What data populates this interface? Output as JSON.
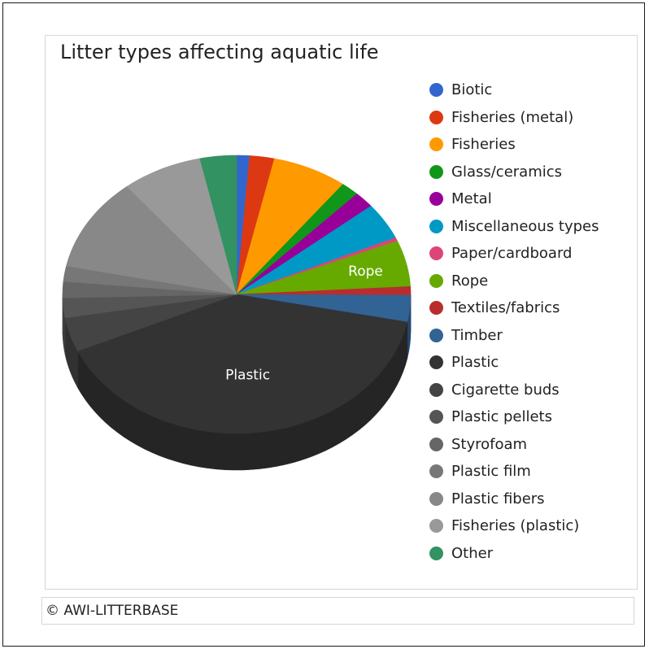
{
  "chart_data": {
    "type": "pie",
    "title": "Litter types affecting aquatic life",
    "series": [
      {
        "name": "Biotic",
        "value": 1.2,
        "color": "#3366cc"
      },
      {
        "name": "Fisheries (metal)",
        "value": 2.3,
        "color": "#dc3912"
      },
      {
        "name": "Fisheries",
        "value": 7.0,
        "color": "#ff9900"
      },
      {
        "name": "Glass/ceramics",
        "value": 1.7,
        "color": "#109618"
      },
      {
        "name": "Metal",
        "value": 1.9,
        "color": "#990099"
      },
      {
        "name": "Miscellaneous types",
        "value": 4.3,
        "color": "#0099c6"
      },
      {
        "name": "Paper/cardboard",
        "value": 0.4,
        "color": "#dd4477"
      },
      {
        "name": "Rope",
        "value": 5.4,
        "color": "#66aa00"
      },
      {
        "name": "Textiles/fabrics",
        "value": 1.0,
        "color": "#b82e2e"
      },
      {
        "name": "Timber",
        "value": 3.1,
        "color": "#316395"
      },
      {
        "name": "Plastic",
        "value": 40.3,
        "color": "#333333"
      },
      {
        "name": "Cigarette buds",
        "value": 4.0,
        "color": "#444444"
      },
      {
        "name": "Plastic pellets",
        "value": 2.3,
        "color": "#555555"
      },
      {
        "name": "Styrofoam",
        "value": 1.9,
        "color": "#666666"
      },
      {
        "name": "Plastic film",
        "value": 1.8,
        "color": "#777777"
      },
      {
        "name": "Plastic fibers",
        "value": 10.9,
        "color": "#888888"
      },
      {
        "name": "Fisheries (plastic)",
        "value": 7.5,
        "color": "#999999"
      },
      {
        "name": "Other",
        "value": 3.4,
        "color": "#329262"
      }
    ],
    "slice_labels": [
      "Rope",
      "Plastic"
    ],
    "legend_position": "right",
    "style": "3d"
  },
  "footer": {
    "credit": "© AWI-LITTERBASE"
  }
}
